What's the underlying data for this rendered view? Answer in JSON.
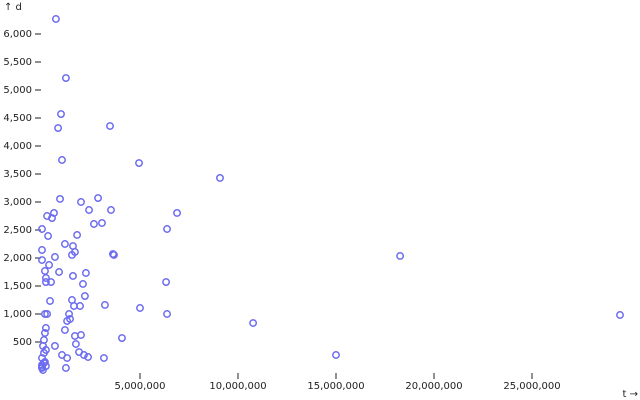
{
  "chart_data": {
    "type": "scatter",
    "x_label": "t →",
    "y_label": "↑ d",
    "color": "#6c6cf0",
    "xlim": [
      0,
      29490000
    ],
    "ylim": [
      0,
      6268
    ],
    "xticks": [
      {
        "value": 5000000,
        "label": "5,000,000"
      },
      {
        "value": 10000000,
        "label": "10,000,000"
      },
      {
        "value": 15000000,
        "label": "15,000,000"
      },
      {
        "value": 20000000,
        "label": "20,000,000"
      },
      {
        "value": 25000000,
        "label": "25,000,000"
      }
    ],
    "yticks": [
      {
        "value": 500,
        "label": "500"
      },
      {
        "value": 1000,
        "label": "1,000"
      },
      {
        "value": 1500,
        "label": "1,500"
      },
      {
        "value": 2000,
        "label": "2,000"
      },
      {
        "value": 2500,
        "label": "2,500"
      },
      {
        "value": 3000,
        "label": "3,000"
      },
      {
        "value": 3500,
        "label": "3,500"
      },
      {
        "value": 4000,
        "label": "4,000"
      },
      {
        "value": 4500,
        "label": "4,500"
      },
      {
        "value": 5000,
        "label": "5,000"
      },
      {
        "value": 5500,
        "label": "5,500"
      },
      {
        "value": 6000,
        "label": "6,000"
      }
    ],
    "x": [
      710000,
      1220000,
      970000,
      820000,
      3470000,
      1020000,
      4950000,
      9080000,
      920000,
      2860000,
      1990000,
      3520000,
      2400000,
      6890000,
      610000,
      260000,
      510000,
      3060000,
      2650000,
      0,
      6380000,
      310000,
      1790000,
      1170000,
      1580000,
      0,
      1680000,
      1530000,
      3620000,
      3670000,
      18270000,
      660000,
      0,
      360000,
      150000,
      870000,
      2240000,
      1580000,
      200000,
      200000,
      460000,
      6330000,
      2090000,
      2190000,
      1530000,
      410000,
      1630000,
      1940000,
      3210000,
      5000000,
      150000,
      260000,
      6380000,
      29490000,
      1380000,
      1430000,
      10770000,
      1280000,
      200000,
      150000,
      1170000,
      1990000,
      1680000,
      4080000,
      100000,
      1730000,
      50000,
      660000,
      200000,
      1890000,
      100000,
      1020000,
      2140000,
      15000000,
      2350000,
      3160000,
      1280000,
      0,
      150000,
      200000,
      1220000,
      0,
      100000,
      0,
      50000,
      0
    ],
    "values": [
      6268,
      5214,
      4571,
      4321,
      4357,
      3750,
      3696,
      3429,
      3054,
      3071,
      3000,
      2857,
      2857,
      2804,
      2804,
      2750,
      2714,
      2625,
      2607,
      2518,
      2518,
      2393,
      2411,
      2250,
      2214,
      2143,
      2107,
      2054,
      2071,
      2054,
      2036,
      2018,
      1964,
      1875,
      1768,
      1750,
      1732,
      1679,
      1643,
      1571,
      1571,
      1571,
      1536,
      1321,
      1250,
      1232,
      1143,
      1143,
      1161,
      1107,
      1000,
      1000,
      1000,
      982,
      1000,
      911,
      839,
      875,
      750,
      661,
      714,
      625,
      607,
      571,
      536,
      464,
      429,
      429,
      357,
      321,
      304,
      268,
      268,
      268,
      232,
      214,
      214,
      214,
      143,
      71,
      36,
      54,
      125,
      89,
      0,
      36
    ]
  }
}
